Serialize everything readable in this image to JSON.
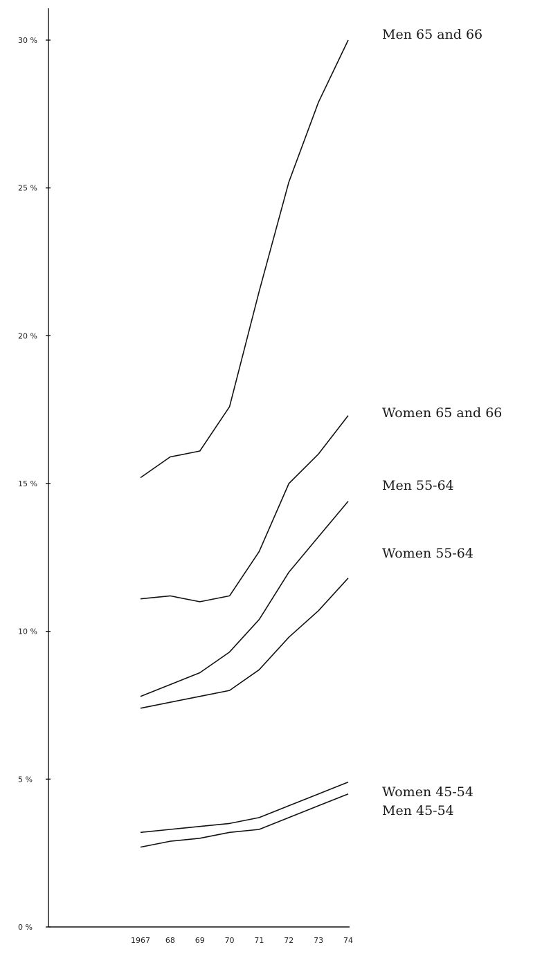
{
  "chart_data": {
    "type": "line",
    "title": "",
    "xlabel": "",
    "ylabel": "",
    "x": [
      1967,
      1968,
      1969,
      1970,
      1971,
      1972,
      1973,
      1974
    ],
    "x_tick_labels": [
      "1967",
      "68",
      "69",
      "70",
      "71",
      "72",
      "73",
      "74"
    ],
    "y_ticks": [
      0,
      5,
      10,
      15,
      20,
      25,
      30
    ],
    "y_tick_labels": [
      "0 %",
      "5 %",
      "10 %",
      "15 %",
      "20 %",
      "25 %",
      "30 %"
    ],
    "ylim": [
      0,
      30
    ],
    "grid": false,
    "legend": "labels at line ends (right)",
    "series": [
      {
        "name": "Men 65 and 66",
        "values": [
          15.2,
          15.9,
          16.1,
          17.6,
          21.5,
          25.2,
          27.9,
          30.0
        ]
      },
      {
        "name": "Women 65 and 66",
        "values": [
          11.1,
          11.2,
          11.0,
          11.2,
          12.7,
          15.0,
          16.0,
          17.3
        ]
      },
      {
        "name": "Men 55-64",
        "values": [
          7.8,
          8.2,
          8.6,
          9.3,
          10.4,
          12.0,
          13.2,
          14.4
        ]
      },
      {
        "name": "Women 55-64",
        "values": [
          7.4,
          7.6,
          7.8,
          8.0,
          8.7,
          9.8,
          10.7,
          11.8
        ]
      },
      {
        "name": "Women 45-54",
        "values": [
          3.2,
          3.3,
          3.4,
          3.5,
          3.7,
          4.1,
          4.5,
          4.9
        ]
      },
      {
        "name": "Men 45-54",
        "values": [
          2.7,
          2.9,
          3.0,
          3.2,
          3.3,
          3.7,
          4.1,
          4.5
        ]
      }
    ]
  }
}
